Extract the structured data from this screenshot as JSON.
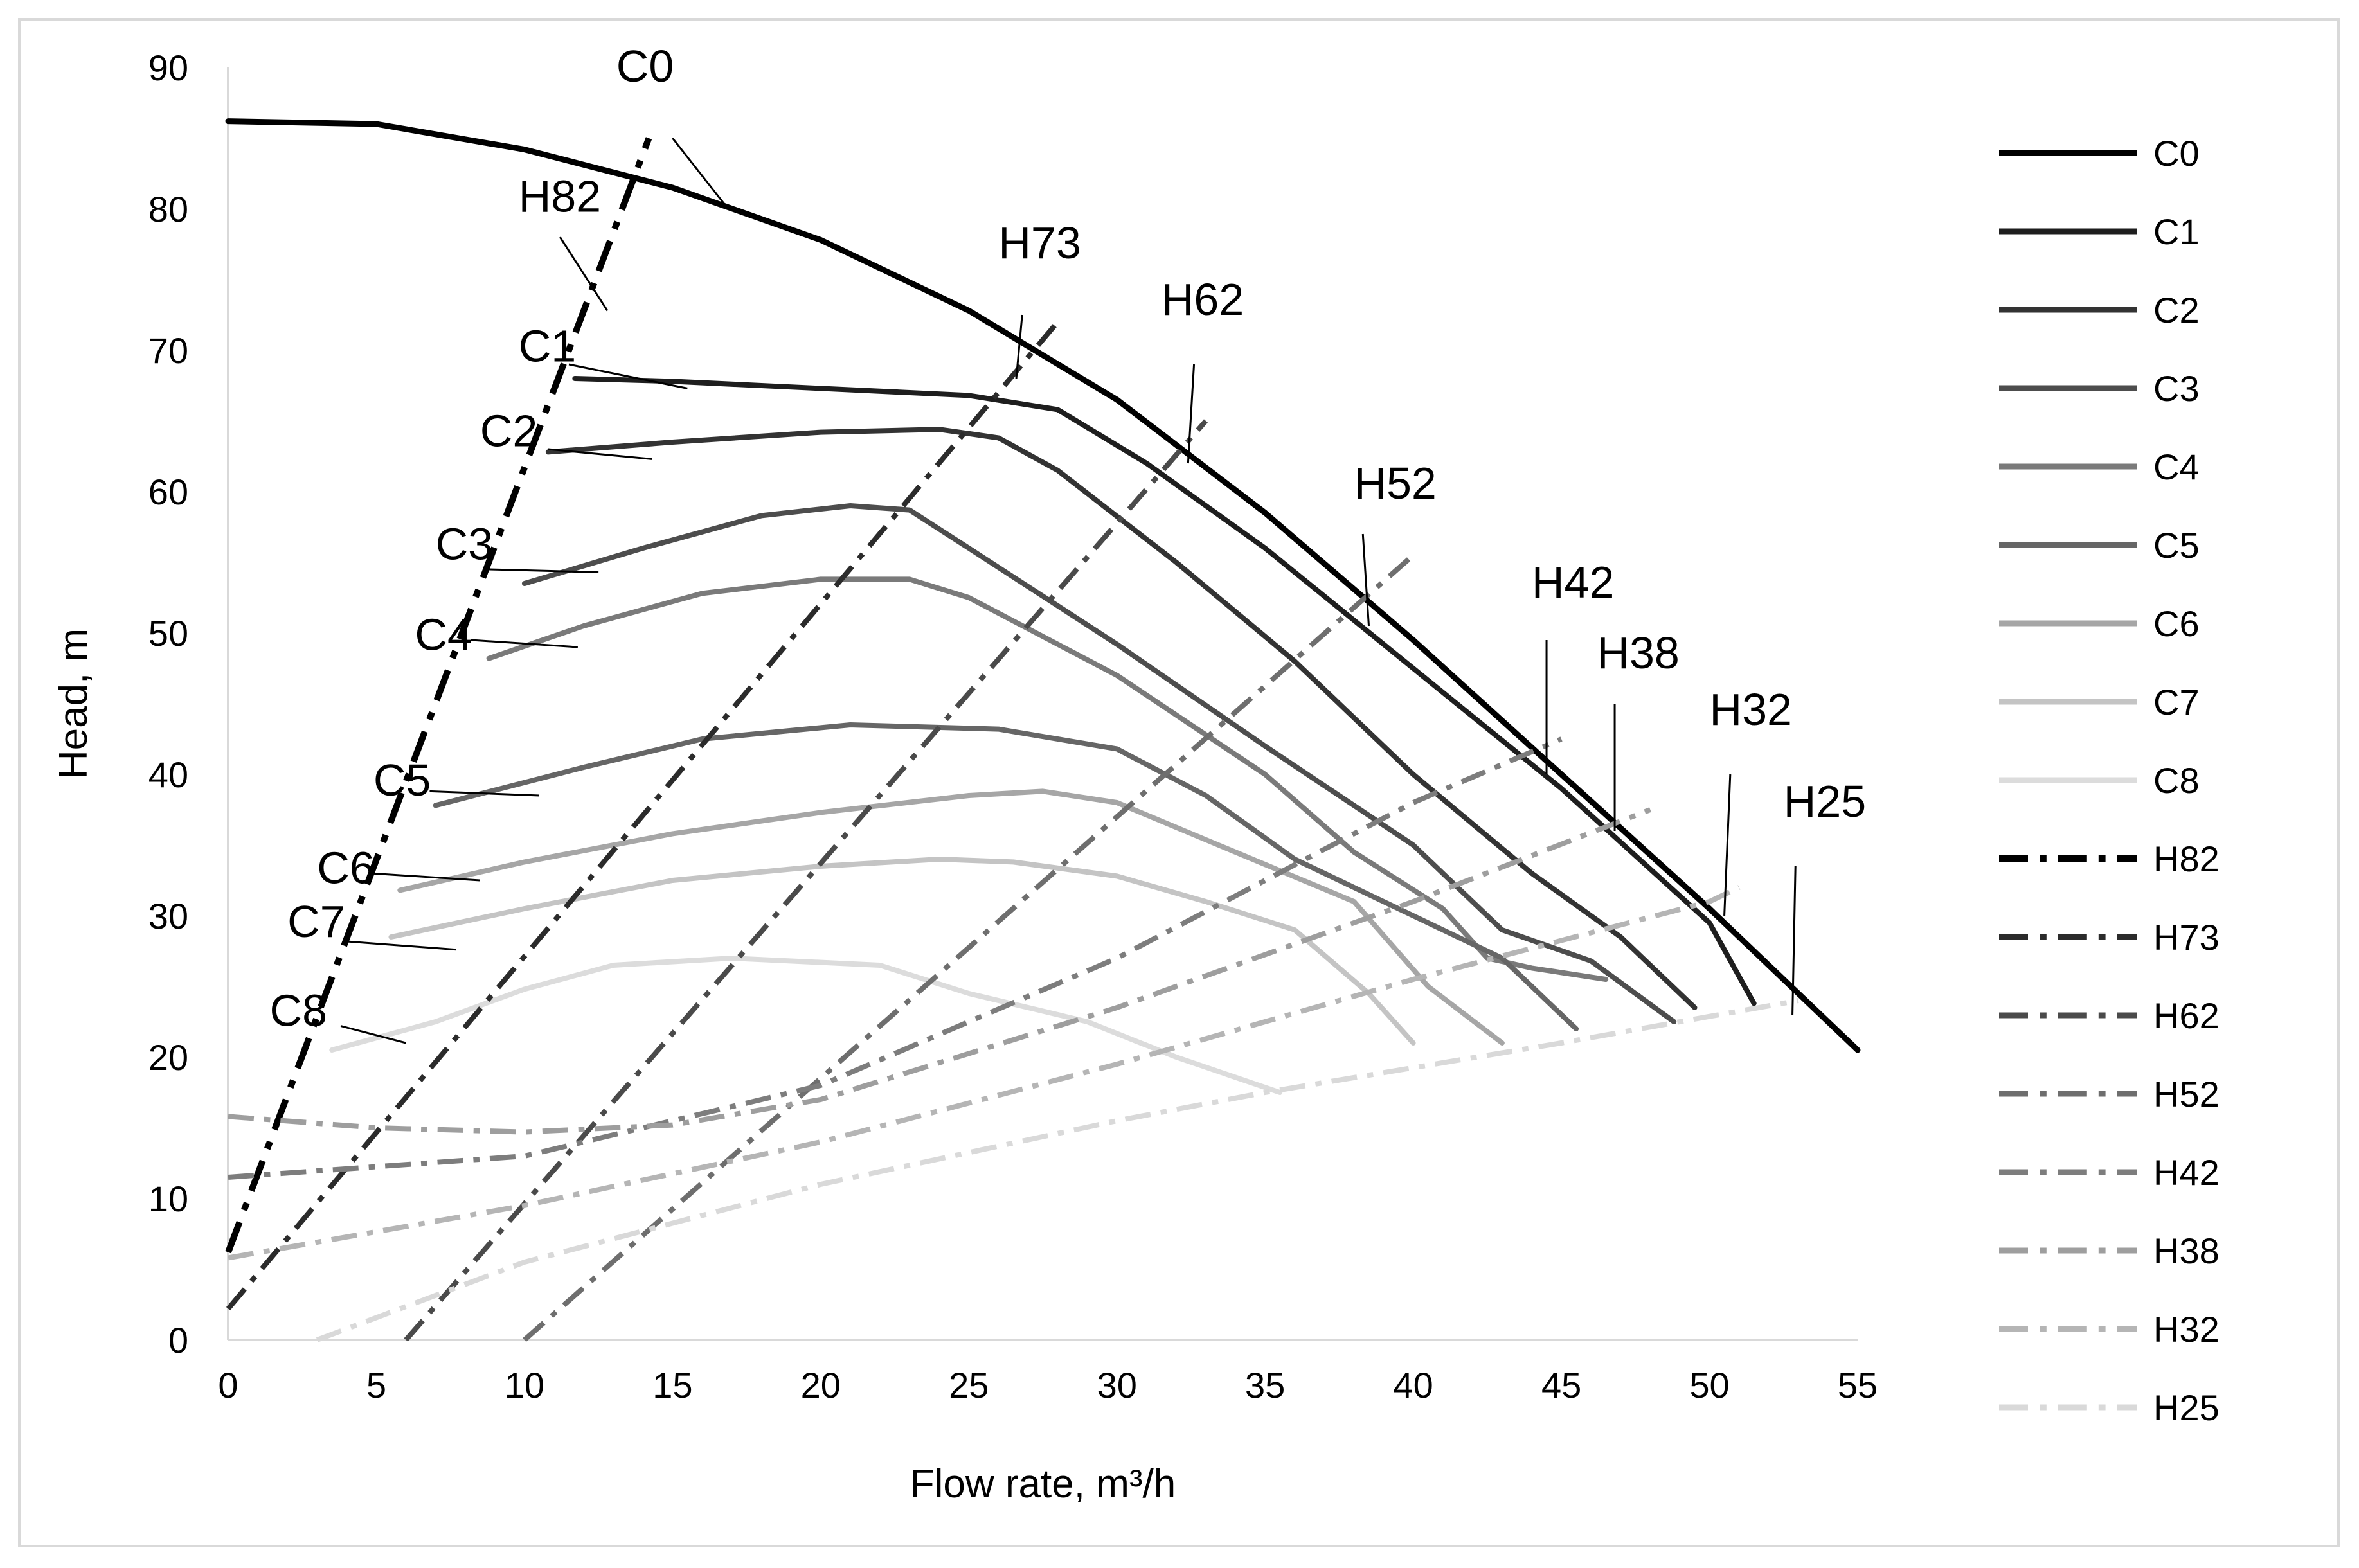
{
  "chart_data": {
    "type": "line",
    "xlabel": "Flow rate, m³/h",
    "ylabel": "Head, m",
    "xlim": [
      0,
      55
    ],
    "ylim": [
      0,
      90
    ],
    "xticks": [
      0,
      5,
      10,
      15,
      20,
      25,
      30,
      35,
      40,
      45,
      50,
      55
    ],
    "yticks": [
      0,
      10,
      20,
      30,
      40,
      50,
      60,
      70,
      80,
      90
    ],
    "grid": false,
    "legend_position": "right",
    "series": [
      {
        "name": "C0",
        "style": "solid",
        "color": "#000000",
        "width": 9,
        "points": [
          [
            0,
            86.2
          ],
          [
            5,
            86
          ],
          [
            10,
            84.2
          ],
          [
            15,
            81.5
          ],
          [
            20,
            77.8
          ],
          [
            25,
            72.8
          ],
          [
            30,
            66.5
          ],
          [
            35,
            58.5
          ],
          [
            40,
            49.5
          ],
          [
            45,
            40
          ],
          [
            50,
            30.5
          ],
          [
            55,
            20.5
          ]
        ]
      },
      {
        "name": "C1",
        "style": "solid",
        "color": "#1e1e1e",
        "width": 8,
        "points": [
          [
            11.7,
            68
          ],
          [
            15,
            67.8
          ],
          [
            20,
            67.3
          ],
          [
            25,
            66.8
          ],
          [
            28,
            65.8
          ],
          [
            31,
            62
          ],
          [
            35,
            56
          ],
          [
            40,
            47.5
          ],
          [
            45,
            39
          ],
          [
            50,
            29.5
          ],
          [
            51.5,
            23.8
          ]
        ]
      },
      {
        "name": "C2",
        "style": "solid",
        "color": "#333333",
        "width": 8,
        "points": [
          [
            10.8,
            62.8
          ],
          [
            15,
            63.5
          ],
          [
            20,
            64.2
          ],
          [
            24,
            64.4
          ],
          [
            26,
            63.8
          ],
          [
            28,
            61.5
          ],
          [
            32,
            55
          ],
          [
            36,
            48
          ],
          [
            40,
            40
          ],
          [
            44,
            33
          ],
          [
            47,
            28.5
          ],
          [
            49.5,
            23.5
          ]
        ]
      },
      {
        "name": "C3",
        "style": "solid",
        "color": "#4d4d4d",
        "width": 8,
        "points": [
          [
            10,
            53.5
          ],
          [
            14,
            56
          ],
          [
            18,
            58.3
          ],
          [
            21,
            59
          ],
          [
            23,
            58.7
          ],
          [
            25,
            56
          ],
          [
            30,
            49.2
          ],
          [
            35,
            42
          ],
          [
            40,
            35
          ],
          [
            43,
            29
          ],
          [
            46,
            26.8
          ],
          [
            48.8,
            22.5
          ]
        ]
      },
      {
        "name": "C4",
        "style": "solid",
        "color": "#7a7a7a",
        "width": 8,
        "points": [
          [
            8.8,
            48.2
          ],
          [
            12,
            50.5
          ],
          [
            16,
            52.8
          ],
          [
            20,
            53.8
          ],
          [
            23,
            53.8
          ],
          [
            25,
            52.5
          ],
          [
            30,
            47
          ],
          [
            35,
            40
          ],
          [
            38,
            34.5
          ],
          [
            41,
            30.5
          ],
          [
            42.5,
            27
          ],
          [
            44,
            26.3
          ],
          [
            46.5,
            25.5
          ]
        ]
      },
      {
        "name": "C5",
        "style": "solid",
        "color": "#666666",
        "width": 8,
        "points": [
          [
            7,
            37.8
          ],
          [
            12,
            40.5
          ],
          [
            16,
            42.5
          ],
          [
            21,
            43.5
          ],
          [
            26,
            43.2
          ],
          [
            30,
            41.8
          ],
          [
            33,
            38.5
          ],
          [
            36,
            34
          ],
          [
            39,
            31
          ],
          [
            43,
            27
          ],
          [
            45.5,
            22
          ]
        ]
      },
      {
        "name": "C6",
        "style": "solid",
        "color": "#a6a6a6",
        "width": 8,
        "points": [
          [
            5.8,
            31.8
          ],
          [
            10,
            33.8
          ],
          [
            15,
            35.8
          ],
          [
            20,
            37.3
          ],
          [
            25,
            38.5
          ],
          [
            27.5,
            38.8
          ],
          [
            30,
            38
          ],
          [
            34,
            34.5
          ],
          [
            38,
            31
          ],
          [
            40.5,
            25
          ],
          [
            43,
            21
          ]
        ]
      },
      {
        "name": "C7",
        "style": "solid",
        "color": "#c4c4c4",
        "width": 8,
        "points": [
          [
            5.5,
            28.5
          ],
          [
            10,
            30.5
          ],
          [
            15,
            32.5
          ],
          [
            20,
            33.5
          ],
          [
            24,
            34
          ],
          [
            26.5,
            33.8
          ],
          [
            30,
            32.8
          ],
          [
            33,
            31
          ],
          [
            36,
            29
          ],
          [
            38.5,
            24.5
          ],
          [
            40,
            21
          ]
        ]
      },
      {
        "name": "C8",
        "style": "solid",
        "color": "#dcdcdc",
        "width": 8,
        "points": [
          [
            3.5,
            20.5
          ],
          [
            7,
            22.5
          ],
          [
            10,
            24.8
          ],
          [
            13,
            26.5
          ],
          [
            17,
            27
          ],
          [
            22,
            26.5
          ],
          [
            25,
            24.5
          ],
          [
            29,
            22.5
          ],
          [
            32,
            20
          ],
          [
            35.5,
            17.5
          ]
        ]
      },
      {
        "name": "H82",
        "style": "dashdot",
        "color": "#000000",
        "width": 10,
        "points": [
          [
            0,
            6.2
          ],
          [
            14.2,
            85
          ]
        ]
      },
      {
        "name": "H73",
        "style": "dashdot",
        "color": "#2b2b2b",
        "width": 8,
        "points": [
          [
            0,
            2.2
          ],
          [
            28,
            72
          ]
        ]
      },
      {
        "name": "H62",
        "style": "dashdot",
        "color": "#4a4a4a",
        "width": 8,
        "points": [
          [
            6,
            0
          ],
          [
            33,
            65
          ]
        ]
      },
      {
        "name": "H52",
        "style": "dashdot",
        "color": "#6e6e6e",
        "width": 8,
        "points": [
          [
            10,
            0
          ],
          [
            40,
            55.5
          ]
        ]
      },
      {
        "name": "H42",
        "style": "dashdot",
        "color": "#7d7d7d",
        "width": 8,
        "points": [
          [
            0,
            11.5
          ],
          [
            10,
            13
          ],
          [
            20,
            18
          ],
          [
            30,
            27
          ],
          [
            40,
            38
          ],
          [
            45,
            42.5
          ]
        ]
      },
      {
        "name": "H38",
        "style": "dashdot",
        "color": "#9e9e9e",
        "width": 8,
        "points": [
          [
            0,
            15.8
          ],
          [
            5,
            15
          ],
          [
            10,
            14.7
          ],
          [
            15,
            15.2
          ],
          [
            20,
            17
          ],
          [
            30,
            23.5
          ],
          [
            40,
            31
          ],
          [
            48,
            37.5
          ]
        ]
      },
      {
        "name": "H32",
        "style": "dashdot",
        "color": "#b5b5b5",
        "width": 8,
        "points": [
          [
            0,
            5.8
          ],
          [
            10,
            9.5
          ],
          [
            20,
            14
          ],
          [
            30,
            19.5
          ],
          [
            40,
            25.5
          ],
          [
            50,
            31
          ],
          [
            51,
            32
          ]
        ]
      },
      {
        "name": "H25",
        "style": "dashdot",
        "color": "#d9d9d9",
        "width": 8,
        "points": [
          [
            3,
            0
          ],
          [
            10,
            5.5
          ],
          [
            20,
            11
          ],
          [
            30,
            15.5
          ],
          [
            35,
            17.5
          ],
          [
            45,
            21
          ],
          [
            53,
            24
          ]
        ]
      }
    ],
    "annotations": [
      {
        "text": "C0",
        "at": [
          13.1,
          89
        ],
        "line": [
          [
            15,
            85
          ],
          [
            16.8,
            80.2
          ]
        ]
      },
      {
        "text": "H82",
        "at": [
          9.8,
          79.8
        ],
        "line": [
          [
            11.2,
            78
          ],
          [
            12.8,
            72.8
          ]
        ]
      },
      {
        "text": "C1",
        "at": [
          9.8,
          69.2
        ],
        "line": [
          [
            11.5,
            69
          ],
          [
            15.5,
            67.3
          ]
        ]
      },
      {
        "text": "C2",
        "at": [
          8.5,
          63.2
        ],
        "line": [
          [
            10.8,
            63
          ],
          [
            14.3,
            62.3
          ]
        ]
      },
      {
        "text": "C3",
        "at": [
          7,
          55.2
        ],
        "line": [
          [
            8.8,
            54.5
          ],
          [
            12.5,
            54.3
          ]
        ]
      },
      {
        "text": "C4",
        "at": [
          6.3,
          48.8
        ],
        "line": [
          [
            8.2,
            49.5
          ],
          [
            11.8,
            49
          ]
        ]
      },
      {
        "text": "H73",
        "at": [
          26,
          76.5
        ],
        "line": [
          [
            26.8,
            72.5
          ],
          [
            26.6,
            68
          ]
        ]
      },
      {
        "text": "H62",
        "at": [
          31.5,
          72.5
        ],
        "line": [
          [
            32.6,
            69
          ],
          [
            32.4,
            62
          ]
        ]
      },
      {
        "text": "H52",
        "at": [
          38,
          59.5
        ],
        "line": [
          [
            38.3,
            57
          ],
          [
            38.5,
            50.5
          ]
        ]
      },
      {
        "text": "H42",
        "at": [
          44,
          52.5
        ],
        "line": [
          [
            44.5,
            49.5
          ],
          [
            44.5,
            40
          ]
        ]
      },
      {
        "text": "H38",
        "at": [
          46.2,
          47.5
        ],
        "line": [
          [
            46.8,
            45
          ],
          [
            46.8,
            36
          ]
        ]
      },
      {
        "text": "H32",
        "at": [
          50,
          43.5
        ],
        "line": [
          [
            50.7,
            40
          ],
          [
            50.5,
            30
          ]
        ]
      },
      {
        "text": "H25",
        "at": [
          52.5,
          37
        ],
        "line": [
          [
            52.9,
            33.5
          ],
          [
            52.8,
            23
          ]
        ]
      },
      {
        "text": "C5",
        "at": [
          4.9,
          38.5
        ],
        "line": [
          [
            6.8,
            38.8
          ],
          [
            10.5,
            38.5
          ]
        ]
      },
      {
        "text": "C6",
        "at": [
          3,
          32.3
        ],
        "line": [
          [
            4.8,
            33
          ],
          [
            8.5,
            32.5
          ]
        ]
      },
      {
        "text": "C7",
        "at": [
          2,
          28.5
        ],
        "line": [
          [
            3.9,
            28.2
          ],
          [
            7.7,
            27.6
          ]
        ]
      },
      {
        "text": "C8",
        "at": [
          1.4,
          22.2
        ],
        "line": [
          [
            3.8,
            22.2
          ],
          [
            6,
            21
          ]
        ]
      }
    ]
  }
}
